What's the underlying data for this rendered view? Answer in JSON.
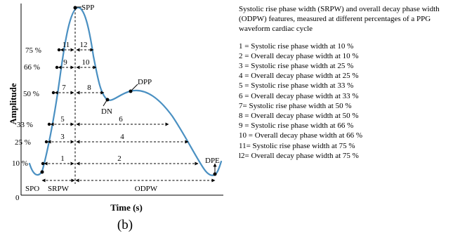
{
  "figure": {
    "subfigure_label": "(b)",
    "axes": {
      "xlabel": "Time (s)",
      "ylabel": "Amplitude",
      "origin_label": "0"
    },
    "points": {
      "spo": "SPO",
      "spp": "SPP",
      "dn": "DN",
      "dpp": "DPP",
      "dpe": "DPE"
    },
    "segments": {
      "srpw": "SRPW",
      "odpw": "ODPW"
    },
    "levels": [
      {
        "label": "10 %",
        "rise_num": "1",
        "decay_num": "2"
      },
      {
        "label": "25 %",
        "rise_num": "3",
        "decay_num": "4"
      },
      {
        "label": "33 %",
        "rise_num": "5",
        "decay_num": "6"
      },
      {
        "label": "50 %",
        "rise_num": "7",
        "decay_num": "8"
      },
      {
        "label": "66 %",
        "rise_num": "9",
        "decay_num": "10"
      },
      {
        "label": "75 %",
        "rise_num": "11",
        "decay_num": "12"
      }
    ],
    "colors": {
      "waveform": "#4a90c2",
      "annotation": "#000000"
    }
  },
  "legend": {
    "description": "Systolic rise phase width (SRPW) and overall decay phase width (ODPW) features, measured at different percentages of a PPG waveform cardiac cycle",
    "items": [
      "1 = Systolic rise phase width at 10 %",
      "2 = Overall decay phase width at 10 %",
      "3 = Systolic rise phase width at 25 %",
      "4 = Overall decay phase width at 25 %",
      "5 = Systolic rise phase width at 33 %",
      "6 = Overall decay phase width at 33 %",
      "7= Systolic rise phase width at 50 %",
      "8 = Overall decay phase width at 50 %",
      "9 = Systolic rise phase width at 66 %",
      "10 = Overall decay phase width at 66 %",
      "11= Systolic rise phase width at 75 %",
      "l2= Overall decay phase width at 75 %"
    ]
  }
}
